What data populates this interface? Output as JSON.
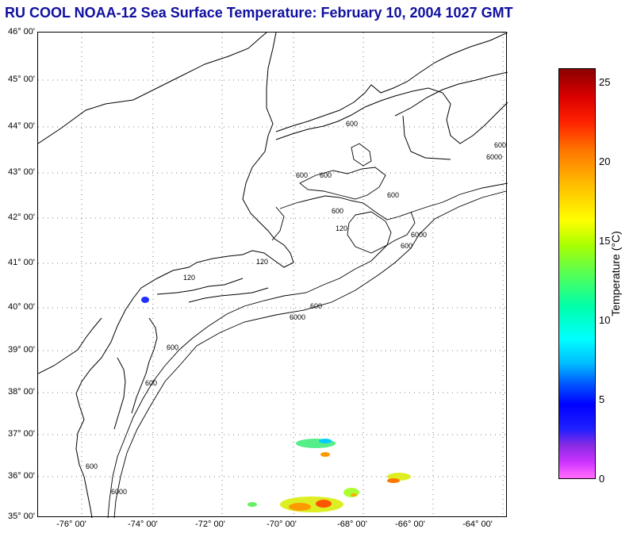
{
  "title": "RU COOL  NOAA-12  Sea Surface Temperature:  February 10, 2004 1027 GMT",
  "lat_labels": [
    "46° 00'",
    "45° 00'",
    "44° 00'",
    "43° 00'",
    "42° 00'",
    "41° 00'",
    "40° 00'",
    "39° 00'",
    "38° 00'",
    "37° 00'",
    "36° 00'",
    "35° 00'"
  ],
  "lon_labels": [
    "-76° 00'",
    "-74° 00'",
    "-72° 00'",
    "-70° 00'",
    "-68° 00'",
    "-66° 00'",
    "-64° 00'"
  ],
  "contour_labels": [
    "600",
    "600",
    "600",
    "600",
    "120",
    "120",
    "120",
    "600",
    "6000",
    "600",
    "600",
    "600",
    "6000",
    "600",
    "6000",
    "600",
    "600",
    "6000"
  ],
  "colorbar": {
    "title": "Temperature (°C)",
    "ticks": [
      "25",
      "20",
      "15",
      "10",
      "5",
      "0"
    ],
    "min": 0,
    "max": 26
  },
  "colors": {
    "title": "#1010a0",
    "grid": "#000000"
  }
}
